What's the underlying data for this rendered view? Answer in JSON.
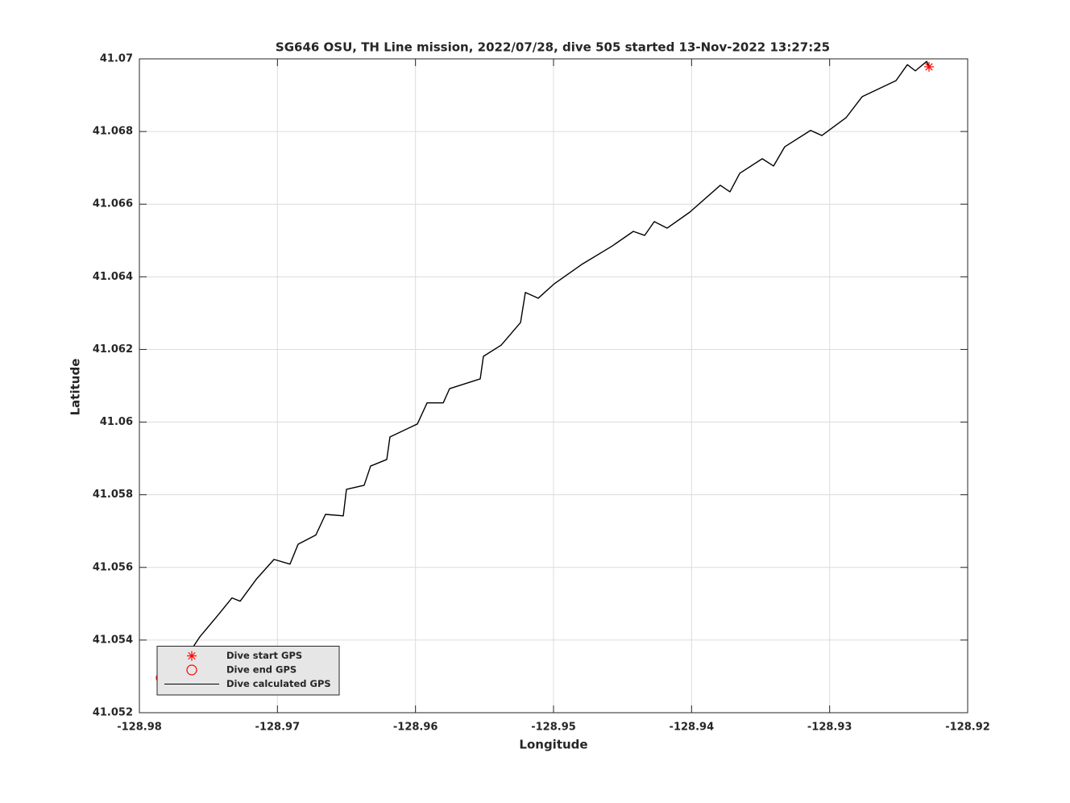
{
  "chart_data": {
    "type": "scatter",
    "title": "SG646 OSU, TH Line mission, 2022/07/28, dive 505 started 13-Nov-2022 13:27:25",
    "x_label": "Longitude",
    "y_label": "Latitude",
    "xlim": [
      -128.98,
      -128.92
    ],
    "ylim": [
      41.052,
      41.07
    ],
    "xticks": [
      -128.98,
      -128.97,
      -128.96,
      -128.95,
      -128.94,
      -128.93,
      -128.92
    ],
    "yticks": [
      41.052,
      41.054,
      41.056,
      41.058,
      41.06,
      41.062,
      41.064,
      41.066,
      41.068,
      41.07
    ],
    "grid": true,
    "legend": "lower left",
    "series": [
      {
        "name": "Dive start GPS",
        "color": "#ff0000",
        "marker": "star",
        "x": [
          -128.9228
        ],
        "y": [
          41.06978
        ]
      },
      {
        "name": "Dive end GPS",
        "color": "#ff0000",
        "marker": "circle",
        "x": [
          -128.97842
        ],
        "y": [
          41.05296
        ]
      },
      {
        "name": "Dive calculated GPS",
        "color": "#000000",
        "marker": "line",
        "x": [
          -128.97842,
          -128.97714,
          -128.97632,
          -128.97562,
          -128.97434,
          -128.97329,
          -128.9727,
          -128.97154,
          -128.97025,
          -128.96909,
          -128.9685,
          -128.96722,
          -128.96652,
          -128.96523,
          -128.965,
          -128.96372,
          -128.96325,
          -128.96208,
          -128.96185,
          -128.95986,
          -128.95916,
          -128.95799,
          -128.95753,
          -128.95531,
          -128.95508,
          -128.95379,
          -128.95239,
          -128.95204,
          -128.95111,
          -128.94994,
          -128.94796,
          -128.94574,
          -128.94422,
          -128.9434,
          -128.9427,
          -128.94177,
          -128.94013,
          -128.93792,
          -128.93722,
          -128.93651,
          -128.93488,
          -128.93406,
          -128.93325,
          -128.93138,
          -128.93056,
          -128.92881,
          -128.92764,
          -128.92519,
          -128.92437,
          -128.92379,
          -128.92297,
          -128.9228
        ],
        "y": [
          41.05296,
          41.05325,
          41.05369,
          41.05409,
          41.05467,
          41.05516,
          41.05507,
          41.05567,
          41.05622,
          41.05609,
          41.05664,
          41.05689,
          41.05746,
          41.05742,
          41.05815,
          41.05826,
          41.05879,
          41.05897,
          41.05959,
          41.05995,
          41.06053,
          41.06053,
          41.06092,
          41.06119,
          41.06181,
          41.06212,
          41.06274,
          41.06357,
          41.06341,
          41.06381,
          41.06434,
          41.06485,
          41.06525,
          41.06514,
          41.06552,
          41.06534,
          41.06578,
          41.06652,
          41.06634,
          41.06685,
          41.06725,
          41.06705,
          41.06758,
          41.06803,
          41.06789,
          41.06838,
          41.06896,
          41.0694,
          41.06984,
          41.06967,
          41.06993,
          41.06978
        ]
      }
    ]
  }
}
